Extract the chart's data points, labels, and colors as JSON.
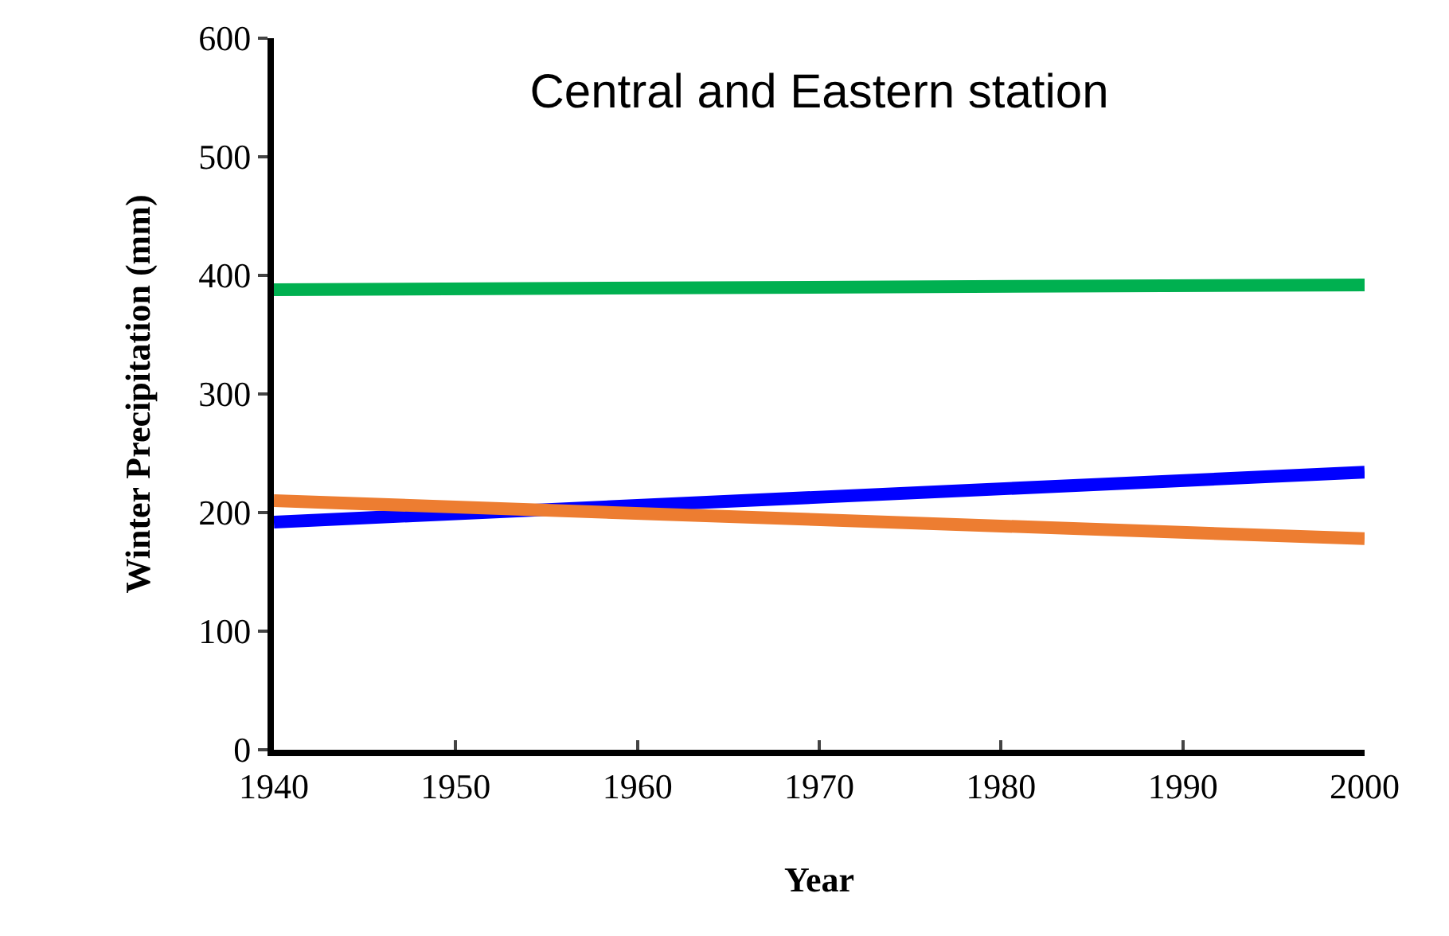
{
  "chart_data": {
    "type": "line",
    "title": "Central and Eastern station",
    "xlabel": "Year",
    "ylabel": "Winter Precipitation (mm)",
    "x": [
      1940,
      2000
    ],
    "series": [
      {
        "color": "#00b050",
        "values": [
          388,
          392
        ]
      },
      {
        "color": "#0000ff",
        "values": [
          192,
          234
        ]
      },
      {
        "color": "#ed7d31",
        "values": [
          210,
          178
        ]
      }
    ],
    "xlim": [
      1940,
      2000
    ],
    "xticks": [
      1940,
      1950,
      1960,
      1970,
      1980,
      1990,
      2000
    ],
    "ylim": [
      0,
      600
    ],
    "yticks": [
      0,
      100,
      200,
      300,
      400,
      500,
      600
    ],
    "legend": false,
    "marker": "none",
    "line_style": "solid"
  }
}
